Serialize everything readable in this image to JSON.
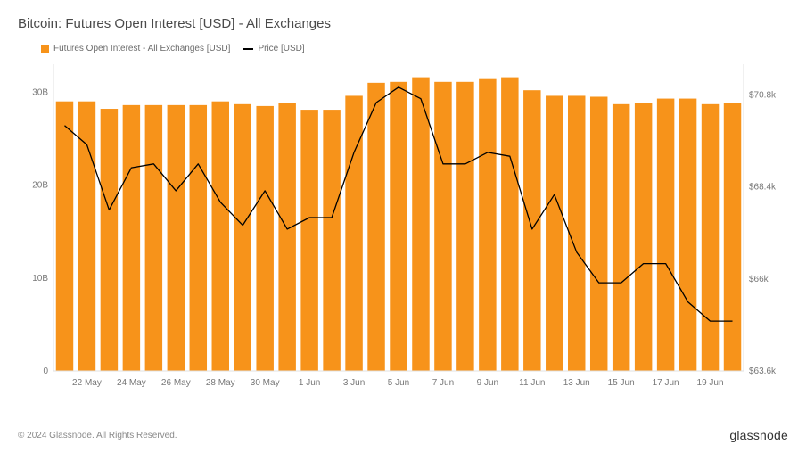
{
  "title": "Bitcoin: Futures Open Interest [USD] - All Exchanges",
  "legend": {
    "series1_label": "Futures Open Interest - All Exchanges [USD]",
    "series2_label": "Price [USD]"
  },
  "footer": {
    "copyright": "© 2024 Glassnode. All Rights Reserved.",
    "brand": "glassnode"
  },
  "chart": {
    "type": "bar_plus_line",
    "background_color": "#ffffff",
    "grid_color": "#e9e9e9",
    "axis_color": "#e0e0e0",
    "bar_color": "#f7931a",
    "line_color": "#000000",
    "line_width": 1.3,
    "bar_width_ratio": 0.78,
    "tick_font_size": 10,
    "tick_color": "#777777",
    "title_fontsize": 15,
    "title_color": "#4a4a4a",
    "legend_fontsize": 10,
    "legend_color": "#6b6b6b",
    "left_axis": {
      "min": 0,
      "max": 33,
      "ticks": [
        {
          "v": 0,
          "label": "0"
        },
        {
          "v": 10,
          "label": "10B"
        },
        {
          "v": 20,
          "label": "20B"
        },
        {
          "v": 30,
          "label": "30B"
        }
      ]
    },
    "right_axis": {
      "min": 63.6,
      "max": 71.6,
      "ticks": [
        {
          "v": 63.6,
          "label": "$63.6k"
        },
        {
          "v": 66.0,
          "label": "$66k"
        },
        {
          "v": 68.4,
          "label": "$68.4k"
        },
        {
          "v": 70.8,
          "label": "$70.8k"
        }
      ]
    },
    "x_ticks_every": 2,
    "data": [
      {
        "date": "21 May",
        "bar": 29.0,
        "price": 70.0
      },
      {
        "date": "22 May",
        "bar": 29.0,
        "price": 69.5
      },
      {
        "date": "23 May",
        "bar": 28.2,
        "price": 67.8
      },
      {
        "date": "24 May",
        "bar": 28.6,
        "price": 68.9
      },
      {
        "date": "25 May",
        "bar": 28.6,
        "price": 69.0
      },
      {
        "date": "26 May",
        "bar": 28.6,
        "price": 68.3
      },
      {
        "date": "27 May",
        "bar": 28.6,
        "price": 69.0
      },
      {
        "date": "28 May",
        "bar": 29.0,
        "price": 68.0
      },
      {
        "date": "29 May",
        "bar": 28.7,
        "price": 67.4
      },
      {
        "date": "30 May",
        "bar": 28.5,
        "price": 68.3
      },
      {
        "date": "31 May",
        "bar": 28.8,
        "price": 67.3
      },
      {
        "date": "1 Jun",
        "bar": 28.1,
        "price": 67.6
      },
      {
        "date": "2 Jun",
        "bar": 28.1,
        "price": 67.6
      },
      {
        "date": "3 Jun",
        "bar": 29.6,
        "price": 69.3
      },
      {
        "date": "4 Jun",
        "bar": 31.0,
        "price": 70.6
      },
      {
        "date": "5 Jun",
        "bar": 31.1,
        "price": 71.0
      },
      {
        "date": "6 Jun",
        "bar": 31.6,
        "price": 70.7
      },
      {
        "date": "7 Jun",
        "bar": 31.1,
        "price": 69.0
      },
      {
        "date": "8 Jun",
        "bar": 31.1,
        "price": 69.0
      },
      {
        "date": "9 Jun",
        "bar": 31.4,
        "price": 69.3
      },
      {
        "date": "10 Jun",
        "bar": 31.6,
        "price": 69.2
      },
      {
        "date": "11 Jun",
        "bar": 30.2,
        "price": 67.3
      },
      {
        "date": "12 Jun",
        "bar": 29.6,
        "price": 68.2
      },
      {
        "date": "13 Jun",
        "bar": 29.6,
        "price": 66.7
      },
      {
        "date": "14 Jun",
        "bar": 29.5,
        "price": 65.9
      },
      {
        "date": "15 Jun",
        "bar": 28.7,
        "price": 65.9
      },
      {
        "date": "16 Jun",
        "bar": 28.8,
        "price": 66.4
      },
      {
        "date": "17 Jun",
        "bar": 29.3,
        "price": 66.4
      },
      {
        "date": "18 Jun",
        "bar": 29.3,
        "price": 65.4
      },
      {
        "date": "19 Jun",
        "bar": 28.7,
        "price": 64.9
      },
      {
        "date": "20 Jun",
        "bar": 28.8,
        "price": 64.9
      }
    ]
  }
}
